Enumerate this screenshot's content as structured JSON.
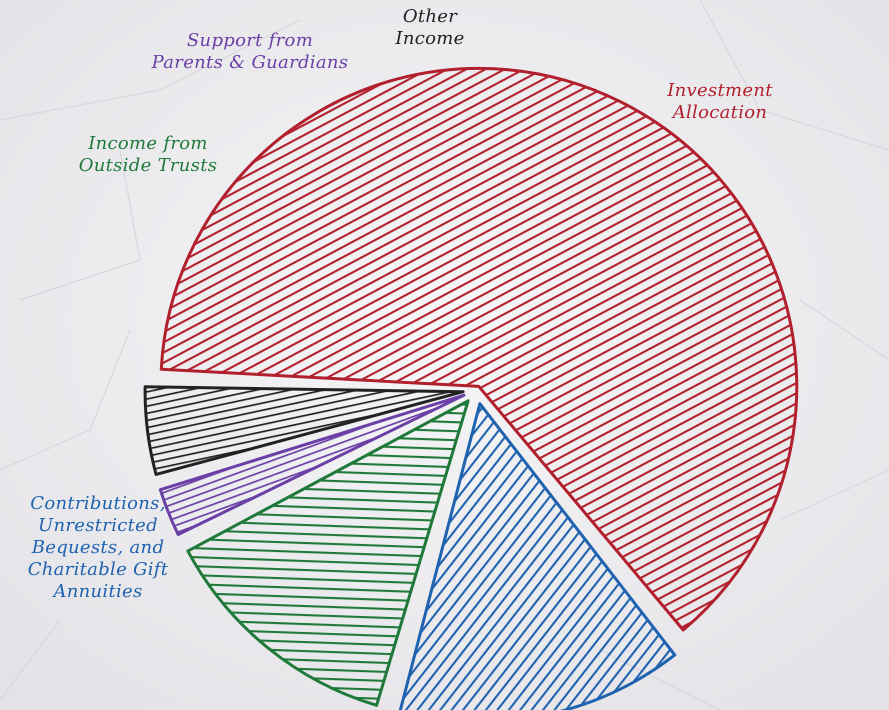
{
  "chart_data": {
    "type": "pie",
    "title": "",
    "slices": [
      {
        "label": "Investment Allocation",
        "value": 63,
        "color": "#b2202d"
      },
      {
        "label": "Contributions, Unrestricted Bequests, and Charitable Gift Annuities",
        "value": 15,
        "color": "#1f62b0"
      },
      {
        "label": "Income from Outside Trusts",
        "value": 13,
        "color": "#1f7a3a"
      },
      {
        "label": "Support from Parents & Guardians",
        "value": 3,
        "color": "#6a3fa6"
      },
      {
        "label": "Other Income",
        "value": 5,
        "color": "#222222"
      }
    ]
  },
  "labels": {
    "investment": "Investment\nAllocation",
    "contributions": "Contributions,\nUnrestricted\nBequests, and\nCharitable Gift\nAnnuities",
    "trusts": "Income from\nOutside Trusts",
    "support": "Support from\nParents & Guardians",
    "other": "Other\nIncome"
  }
}
